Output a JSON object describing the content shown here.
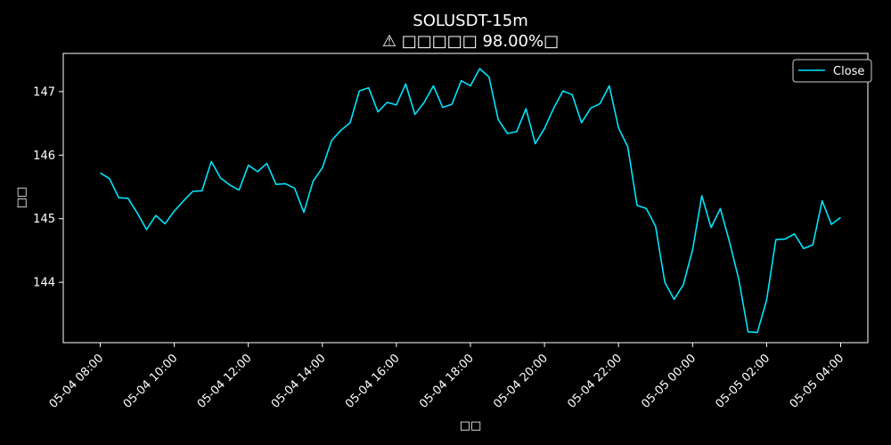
{
  "chart_data": {
    "type": "line",
    "title": "SOLUSDT-15m",
    "subtitle": "⚠ □□□□□ 98.00%□",
    "xlabel": "□□",
    "ylabel": "□□",
    "xticks": [
      "05-04 08:00",
      "05-04 10:00",
      "05-04 12:00",
      "05-04 14:00",
      "05-04 16:00",
      "05-04 18:00",
      "05-04 20:00",
      "05-04 22:00",
      "05-05 00:00",
      "05-05 02:00",
      "05-05 04:00"
    ],
    "yticks": [
      144,
      145,
      146,
      147
    ],
    "ylim": [
      143.05,
      147.6
    ],
    "x_start": "05-04 08:00",
    "interval_minutes": 15,
    "legend": {
      "position": "top-right",
      "label": "Close"
    },
    "series": [
      {
        "name": "Close",
        "color": "#00e5ff",
        "values": [
          145.72,
          145.63,
          145.33,
          145.32,
          145.09,
          144.83,
          145.05,
          144.92,
          145.12,
          145.28,
          145.43,
          145.44,
          145.9,
          145.64,
          145.53,
          145.45,
          145.84,
          145.74,
          145.87,
          145.54,
          145.55,
          145.48,
          145.1,
          145.59,
          145.8,
          146.23,
          146.39,
          146.51,
          147.01,
          147.06,
          146.68,
          146.83,
          146.79,
          147.12,
          146.64,
          146.83,
          147.09,
          146.75,
          146.8,
          147.17,
          147.09,
          147.36,
          147.23,
          146.56,
          146.34,
          146.37,
          146.73,
          146.18,
          146.42,
          146.74,
          147.01,
          146.95,
          146.51,
          146.74,
          146.81,
          147.09,
          146.43,
          146.13,
          145.21,
          145.16,
          144.88,
          144.0,
          143.73,
          143.96,
          144.51,
          145.36,
          144.86,
          145.16,
          144.63,
          144.04,
          143.22,
          143.21,
          143.72,
          144.67,
          144.68,
          144.76,
          144.53,
          144.59,
          145.28,
          144.91,
          145.02
        ]
      }
    ]
  }
}
